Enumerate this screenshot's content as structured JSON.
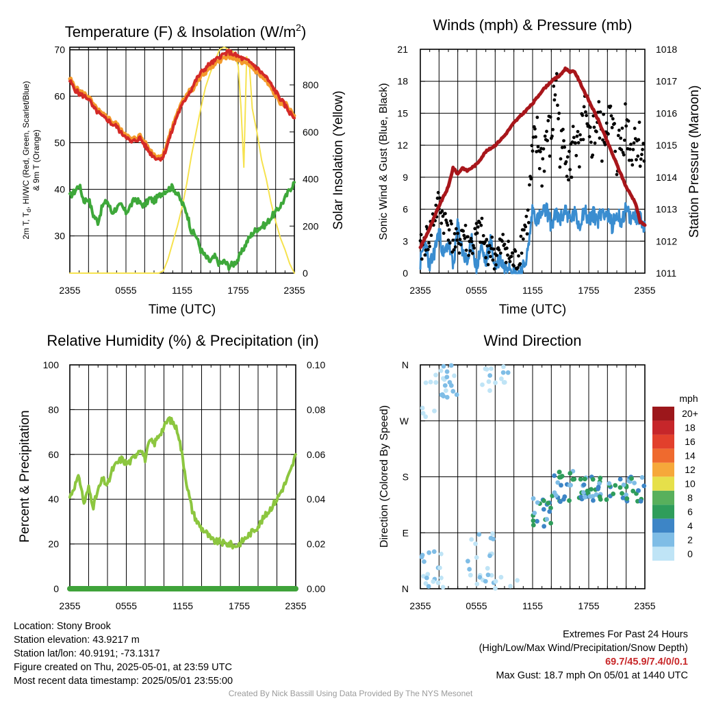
{
  "colors": {
    "temp": "#d42a27",
    "wind_chill": "#3a7ec4",
    "dewpoint": "#3ea83a",
    "nine_m_temp": "#f39a2c",
    "insolation": "#f6e24e",
    "pressure": "#a8161b",
    "wind_speed": "#3a8dd0",
    "gust": "#000000",
    "rh": "#8cc63f",
    "precip": "#3fa33a"
  },
  "chart_data": [
    {
      "type": "line",
      "title": "Temperature (F) & Insolation (W/m²)",
      "title_main": "Temperature (F) & Insolation (W/m",
      "title_sup": "2",
      "title_end": ")",
      "xlabel": "Time (UTC)",
      "ylabel_line1": "2m T, T",
      "ylabel_sub": "d",
      "ylabel_line1_end": ", HI/WC (Red, Green, Scarlet/Blue)",
      "ylabel_line2": "& 9m T (Orange)",
      "ylabel_right": "Solar Insolation (Yellow)",
      "xticks": [
        "2355",
        "0555",
        "1155",
        "1755",
        "2355"
      ],
      "x_hours": [
        0,
        6,
        12,
        18,
        24
      ],
      "xlim": [
        0,
        24
      ],
      "ylim": [
        22,
        70.5
      ],
      "yticks": [
        30,
        40,
        50,
        60,
        70
      ],
      "ylim_right": [
        0,
        960
      ],
      "yticks_right": [
        0,
        200,
        400,
        600,
        800
      ],
      "series": [
        {
          "name": "2m T",
          "axis": "left",
          "x": [
            0,
            0.5,
            1,
            1.5,
            2,
            2.5,
            3,
            3.5,
            4,
            4.5,
            5,
            5.5,
            6,
            6.5,
            7,
            7.5,
            8,
            8.5,
            9,
            9.5,
            10,
            10.5,
            11,
            11.5,
            12,
            12.5,
            13,
            13.5,
            14,
            14.5,
            15,
            15.5,
            16,
            16.5,
            17,
            17.5,
            18,
            18.5,
            19,
            19.5,
            20,
            20.5,
            21,
            21.5,
            22,
            22.5,
            23,
            23.5,
            24
          ],
          "values": [
            63.3,
            61.5,
            60.5,
            60,
            59.5,
            57.5,
            56.5,
            55.5,
            55,
            54,
            53.5,
            52,
            51.5,
            50,
            50.5,
            51,
            49.5,
            48,
            47,
            46.5,
            47,
            50,
            53,
            56,
            58,
            60,
            61.5,
            63.5,
            65,
            66,
            67,
            67.5,
            68.5,
            69,
            69.5,
            69,
            68.5,
            68,
            67.5,
            67,
            66,
            65,
            64,
            62.5,
            61,
            59.5,
            58,
            56.5,
            55.3
          ]
        },
        {
          "name": "Dewpoint",
          "axis": "left",
          "x": [
            0,
            0.5,
            1,
            1.5,
            2,
            2.5,
            3,
            3.5,
            4,
            4.5,
            5,
            5.5,
            6,
            6.5,
            7,
            7.5,
            8,
            8.5,
            9,
            9.5,
            10,
            10.5,
            11,
            11.5,
            12,
            12.5,
            13,
            13.5,
            14,
            14.5,
            15,
            15.5,
            16,
            16.5,
            17,
            17.5,
            18,
            18.5,
            19,
            19.5,
            20,
            20.5,
            21,
            21.5,
            22,
            22.5,
            23,
            23.5,
            24
          ],
          "values": [
            38.5,
            39.5,
            41,
            37.5,
            38,
            34.5,
            33,
            36.5,
            37.5,
            35,
            36,
            36.5,
            35,
            36.5,
            38,
            37,
            36.5,
            38,
            37.5,
            38.5,
            39.5,
            40,
            40.5,
            39,
            37,
            35,
            31,
            30,
            27,
            25.5,
            24.5,
            25.5,
            24,
            24.5,
            23.5,
            24,
            25,
            27,
            29,
            30.5,
            31.5,
            32,
            32.5,
            34,
            35,
            36.5,
            38,
            40,
            41.5
          ]
        },
        {
          "name": "Insolation",
          "axis": "right",
          "x": [
            0,
            4,
            8,
            9,
            9.5,
            10,
            10.5,
            11,
            11.5,
            12,
            12.5,
            13,
            13.5,
            14,
            14.5,
            15,
            15.5,
            16,
            16.5,
            17,
            17.5,
            18,
            18.3,
            18.6,
            18.9,
            19.2,
            19.5,
            20,
            20.5,
            21,
            21.5,
            22,
            22.5,
            23,
            23.5,
            24
          ],
          "values": [
            0,
            0,
            0,
            0,
            0,
            10,
            60,
            130,
            200,
            280,
            380,
            500,
            600,
            700,
            790,
            850,
            900,
            950,
            960,
            950,
            940,
            880,
            700,
            450,
            920,
            880,
            700,
            600,
            480,
            400,
            300,
            220,
            150,
            100,
            40,
            0
          ]
        }
      ]
    },
    {
      "type": "line",
      "title": "Winds (mph) & Pressure (mb)",
      "xlabel": "Time (UTC)",
      "ylabel": "Sonic Wind & Gust (Blue, Black)",
      "ylabel_right": "Station Pressure (Maroon)",
      "xticks": [
        "2355",
        "0555",
        "1155",
        "1755",
        "2355"
      ],
      "x_hours": [
        0,
        6,
        12,
        18,
        24
      ],
      "xlim": [
        0,
        24
      ],
      "ylim": [
        0,
        21
      ],
      "yticks": [
        0,
        3,
        6,
        9,
        12,
        15,
        18,
        21
      ],
      "ylim_right": [
        1011,
        1018
      ],
      "yticks_right": [
        1011,
        1012,
        1013,
        1014,
        1015,
        1016,
        1017,
        1018
      ],
      "series": [
        {
          "name": "Station Pressure",
          "axis": "right",
          "x": [
            0,
            1,
            2,
            3,
            3.5,
            4,
            4.5,
            5,
            6,
            7,
            8,
            9,
            10,
            11,
            12,
            13,
            14,
            15,
            15.5,
            16,
            16.5,
            17,
            18,
            19,
            20,
            21,
            22,
            23,
            23.5,
            24
          ],
          "values": [
            1011.8,
            1012.4,
            1013.1,
            1013.7,
            1014.3,
            1014.1,
            1014.3,
            1014.2,
            1014.4,
            1014.8,
            1015.0,
            1015.3,
            1015.7,
            1016.0,
            1016.3,
            1016.7,
            1017.0,
            1017.2,
            1017.4,
            1017.3,
            1017.3,
            1017.0,
            1016.4,
            1015.8,
            1015.1,
            1014.4,
            1013.7,
            1013.2,
            1012.6,
            1012.5
          ]
        },
        {
          "name": "Sonic Wind",
          "axis": "left",
          "x": [
            0,
            0.5,
            1,
            1.5,
            2,
            2.5,
            3,
            3.5,
            4,
            4.5,
            5,
            5.5,
            6,
            6.5,
            7,
            7.5,
            8,
            8.5,
            9,
            9.5,
            10,
            10.5,
            11,
            11.5,
            12,
            12.5,
            13,
            13.5,
            14,
            14.5,
            15,
            15.5,
            16,
            16.5,
            17,
            17.5,
            18,
            18.5,
            19,
            19.5,
            20,
            20.5,
            21,
            21.5,
            22,
            22.5,
            23,
            23.5,
            24
          ],
          "values": [
            1,
            3,
            0.5,
            2,
            4,
            1.5,
            3,
            0.5,
            4.5,
            2,
            1,
            3,
            0.5,
            2.5,
            1,
            3,
            0.5,
            1.5,
            0.5,
            1,
            0,
            0,
            0.5,
            2,
            6,
            5,
            5.5,
            6,
            4.5,
            5.5,
            5,
            6,
            5,
            5.5,
            4.5,
            6,
            5,
            5.5,
            5,
            6,
            5.5,
            4.5,
            5.5,
            5,
            6,
            5,
            5.5,
            5,
            4.5
          ]
        },
        {
          "name": "Gust",
          "axis": "left",
          "x": [
            0,
            0.5,
            1,
            1.5,
            2,
            2.5,
            3,
            3.5,
            4,
            4.5,
            5,
            5.5,
            6,
            6.5,
            7,
            7.5,
            8,
            8.5,
            9,
            9.5,
            10,
            10.5,
            11,
            11.5,
            12,
            12.5,
            13,
            13.5,
            14,
            14.5,
            15,
            15.5,
            16,
            16.5,
            17,
            17.5,
            18,
            18.5,
            19,
            19.5,
            20,
            20.5,
            21,
            21.5,
            22,
            22.5,
            23,
            23.5,
            24
          ],
          "values": [
            2,
            3,
            3.5,
            5.5,
            6.5,
            5,
            4.5,
            3,
            2.5,
            4,
            3,
            2.5,
            3.5,
            4,
            2,
            2.5,
            1.5,
            2,
            3,
            1.5,
            1,
            1.5,
            4,
            5,
            11,
            12.5,
            10,
            13,
            12.5,
            18.7,
            11,
            12.5,
            9.5,
            13.5,
            10,
            15,
            11.5,
            13,
            14.5,
            12,
            15,
            13.5,
            11,
            12.5,
            14.5,
            11.5,
            13,
            12,
            10.5
          ]
        }
      ]
    },
    {
      "type": "line",
      "title": "Relative Humidity (%) & Precipitation (in)",
      "ylabel": "Percent & Precipitation",
      "xticks": [
        "2355",
        "0555",
        "1155",
        "1755",
        "2355"
      ],
      "x_hours": [
        0,
        6,
        12,
        18,
        24
      ],
      "xlim": [
        0,
        24
      ],
      "ylim": [
        0,
        100
      ],
      "yticks": [
        0,
        20,
        40,
        60,
        80,
        100
      ],
      "ylim_right": [
        0,
        0.1
      ],
      "yticks_right": [
        "0.00",
        "0.02",
        "0.04",
        "0.06",
        "0.08",
        "0.10"
      ],
      "series": [
        {
          "name": "Relative Humidity",
          "axis": "left",
          "x": [
            0,
            0.5,
            1,
            1.5,
            2,
            2.5,
            3,
            3.5,
            4,
            4.5,
            5,
            5.5,
            6,
            6.5,
            7,
            7.5,
            8,
            8.5,
            9,
            9.5,
            10,
            10.5,
            11,
            11.5,
            12,
            12.5,
            13,
            13.5,
            14,
            14.5,
            15,
            15.5,
            16,
            16.5,
            17,
            17.5,
            18,
            18.5,
            19,
            19.5,
            20,
            20.5,
            21,
            21.5,
            22,
            22.5,
            23,
            23.5,
            24
          ],
          "values": [
            41,
            46,
            50,
            38,
            45,
            37,
            44,
            49,
            46,
            53,
            56,
            58,
            56,
            57,
            60,
            63,
            58,
            66,
            65,
            69,
            72,
            76,
            74,
            70,
            58,
            45,
            35,
            30,
            27,
            25,
            22,
            21,
            21,
            20,
            20,
            19,
            20,
            22,
            24,
            26,
            28,
            31,
            34,
            37,
            40,
            44,
            48,
            53,
            60
          ]
        },
        {
          "name": "Precipitation",
          "axis": "right",
          "x": [
            0,
            24
          ],
          "values": [
            0,
            0
          ]
        }
      ]
    },
    {
      "type": "scatter",
      "title": "Wind Direction",
      "ylabel": "Direction (Colored By Speed)",
      "xticks": [
        "2355",
        "0555",
        "1155",
        "1755",
        "2355"
      ],
      "x_hours": [
        0,
        6,
        12,
        18,
        24
      ],
      "xlim": [
        0,
        24
      ],
      "ylim": [
        0,
        360
      ],
      "yticks": [
        "N",
        "E",
        "S",
        "W",
        "N"
      ],
      "ytick_values": [
        0,
        90,
        180,
        270,
        360
      ],
      "colorbar_title": "mph",
      "colorbar_labels": [
        "0",
        "2",
        "4",
        "6",
        "8",
        "10",
        "12",
        "14",
        "16",
        "18",
        "20+"
      ],
      "colorbar_colors": [
        "#bfe4f6",
        "#7fbde6",
        "#3d85c6",
        "#2f9d5b",
        "#58b05c",
        "#e6e04a",
        "#f6a83a",
        "#ef6a2e",
        "#e2402c",
        "#c6262a",
        "#9c171b"
      ],
      "clusters": [
        {
          "x_range": [
            0,
            2
          ],
          "dir_range": [
            270,
            360
          ],
          "speed_range": [
            0,
            2
          ],
          "count": 8
        },
        {
          "x_range": [
            2,
            4
          ],
          "dir_range": [
            300,
            360
          ],
          "speed_range": [
            1,
            4
          ],
          "count": 18
        },
        {
          "x_range": [
            6.5,
            9.5
          ],
          "dir_range": [
            310,
            360
          ],
          "speed_range": [
            0,
            3
          ],
          "count": 14
        },
        {
          "x_range": [
            0,
            3
          ],
          "dir_range": [
            0,
            60
          ],
          "speed_range": [
            0,
            4
          ],
          "count": 18
        },
        {
          "x_range": [
            4.5,
            8
          ],
          "dir_range": [
            0,
            90
          ],
          "speed_range": [
            0,
            4
          ],
          "count": 22
        },
        {
          "x_range": [
            8,
            10.5
          ],
          "dir_range": [
            0,
            20
          ],
          "speed_range": [
            0,
            2
          ],
          "count": 5
        },
        {
          "x_range": [
            12,
            14
          ],
          "dir_range": [
            100,
            150
          ],
          "speed_range": [
            3,
            8
          ],
          "count": 20
        },
        {
          "x_range": [
            14,
            18
          ],
          "dir_range": [
            140,
            190
          ],
          "speed_range": [
            3,
            8
          ],
          "count": 40
        },
        {
          "x_range": [
            18,
            24
          ],
          "dir_range": [
            140,
            180
          ],
          "speed_range": [
            3,
            8
          ],
          "count": 50
        }
      ]
    }
  ],
  "station": {
    "location": "Location: Stony Brook",
    "elevation": "Station elevation: 43.9217 m",
    "latlon": "Station lat/lon: 40.9191; -73.1317",
    "created": "Figure created on Thu, 2025-05-01, at 23:59 UTC",
    "latest": "Most recent data timestamp: 2025/05/01 23:55:00"
  },
  "extremes": {
    "heading": "Extremes For Past 24 Hours",
    "subheading": "(High/Low/Max Wind/Precipitation/Snow Depth)",
    "values": "69.7/45.9/7.4/0/0.1",
    "max_gust": "Max Gust: 18.7 mph On 05/01 at 1440 UTC"
  },
  "credit": "Created By Nick Bassill Using Data Provided By The NYS Mesonet"
}
